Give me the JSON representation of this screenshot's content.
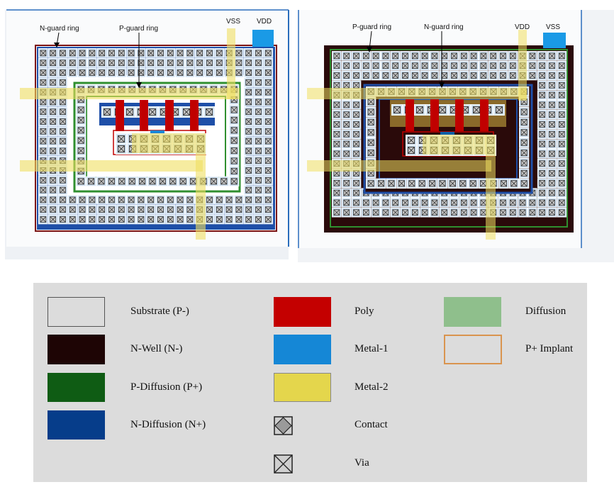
{
  "left_layout": {
    "labels": {
      "n_guard": "N-guard ring",
      "p_guard": "P-guard ring",
      "vss": "VSS",
      "vdd": "VDD"
    }
  },
  "right_layout": {
    "labels": {
      "p_guard": "P-guard ring",
      "n_guard": "N-guard ring",
      "vdd": "VDD",
      "vss": "VSS"
    }
  },
  "colors": {
    "substrate": "#e6e6e6",
    "nwell": "#2a0a0a",
    "p_diffusion": "#1f6b1f",
    "n_diffusion": "#0a3a8c",
    "poly": "#c00000",
    "metal1": "#1a86d6",
    "metal2": "#e8d84a",
    "diffusion": "#8fbf8f",
    "p_implant": "#d99050"
  },
  "legend": {
    "items": [
      {
        "key": "substrate",
        "label": "Substrate (P-)"
      },
      {
        "key": "nwell",
        "label": "N-Well (N-)"
      },
      {
        "key": "p_diffusion",
        "label": "P-Diffusion (P+)"
      },
      {
        "key": "n_diffusion",
        "label": "N-Diffusion (N+)"
      },
      {
        "key": "poly",
        "label": "Poly"
      },
      {
        "key": "metal1",
        "label": "Metal-1"
      },
      {
        "key": "metal2",
        "label": "Metal-2"
      },
      {
        "key": "contact",
        "label": "Contact"
      },
      {
        "key": "via",
        "label": "Via"
      },
      {
        "key": "diffusion",
        "label": "Diffusion"
      },
      {
        "key": "p_implant",
        "label": "P+ Implant"
      }
    ]
  }
}
